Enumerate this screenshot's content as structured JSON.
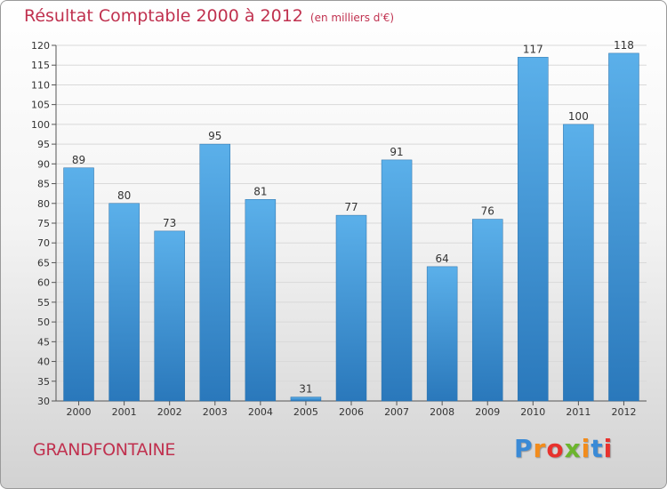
{
  "title": "Résultat Comptable 2000 à 2012",
  "title_unit": "(en milliers d'€)",
  "commune": "GRANDFONTAINE",
  "logo": {
    "text": "Proxiti",
    "letters": [
      "P",
      "r",
      "o",
      "x",
      "i",
      "t",
      "i"
    ],
    "colors": [
      "#3a8ad6",
      "#f28c1c",
      "#e8322d",
      "#6cb52d",
      "#f28c1c",
      "#3a8ad6",
      "#e8322d"
    ]
  },
  "colors": {
    "bar_top": "#5bb0ea",
    "bar_bottom": "#2a78bb",
    "title": "#c0314f"
  },
  "chart_data": {
    "type": "bar",
    "title": "Résultat Comptable 2000 à 2012",
    "subtitle": "(en milliers d'€)",
    "xlabel": "",
    "ylabel": "",
    "categories": [
      "2000",
      "2001",
      "2002",
      "2003",
      "2004",
      "2005",
      "2006",
      "2007",
      "2008",
      "2009",
      "2010",
      "2011",
      "2012"
    ],
    "values": [
      89,
      80,
      73,
      95,
      81,
      31,
      77,
      91,
      64,
      76,
      117,
      100,
      118
    ],
    "data_labels": [
      "89",
      "80",
      "73",
      "95",
      "81",
      "31",
      "77",
      "91",
      "64",
      "76",
      "117",
      "100",
      "118"
    ],
    "ylim": [
      30,
      120
    ],
    "yticks": [
      "30",
      "35",
      "40",
      "45",
      "50",
      "55",
      "60",
      "65",
      "70",
      "75",
      "80",
      "85",
      "90",
      "95",
      "100",
      "105",
      "110",
      "115",
      "120"
    ],
    "grid": true
  }
}
